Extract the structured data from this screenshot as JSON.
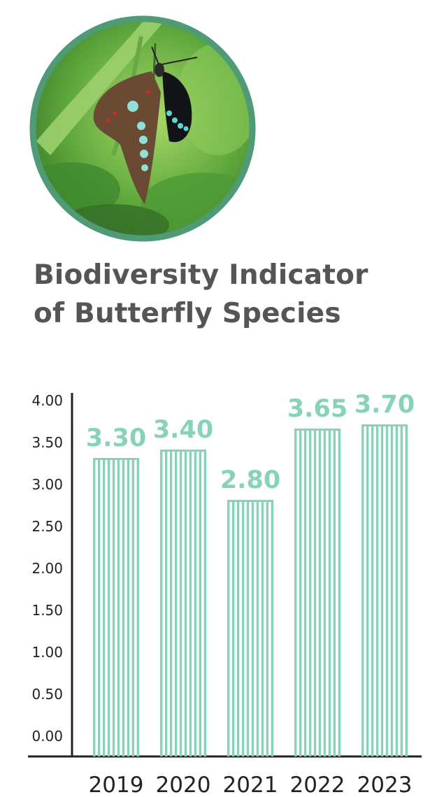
{
  "colors": {
    "bar": "#86d3b9",
    "title": "#555555",
    "axis": "#222222",
    "photo_ring": "#4e9b76"
  },
  "photo": {
    "icon": "butterfly-photo"
  },
  "chart_data": {
    "type": "bar",
    "title": "Biodiversity Indicator of Butterfly Species",
    "title_lines": [
      "Biodiversity Indicator",
      "of Butterfly Species"
    ],
    "categories": [
      "2019",
      "2020",
      "2021",
      "2022",
      "2023"
    ],
    "values": [
      3.3,
      3.4,
      2.8,
      3.65,
      3.7
    ],
    "data_labels": [
      "3.30",
      "3.40",
      "2.80",
      "3.65",
      "3.70"
    ],
    "y_ticks": [
      "0.00",
      "0.50",
      "1.00",
      "1.50",
      "2.00",
      "2.50",
      "3.00",
      "3.50",
      "4.00"
    ],
    "ylim": [
      0,
      4
    ],
    "xlabel": "",
    "ylabel": "",
    "grid": false,
    "legend": "none",
    "bar_style": "vertical-striped"
  }
}
